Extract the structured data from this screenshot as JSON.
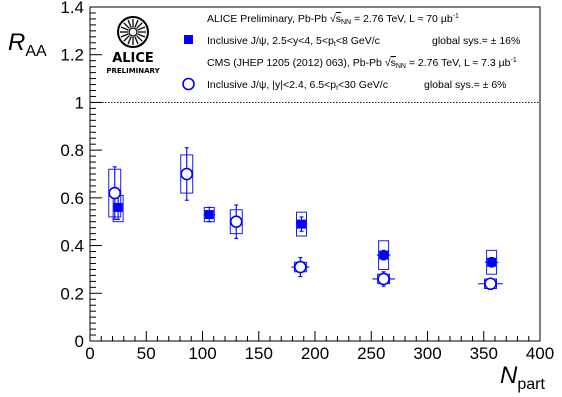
{
  "chart_data": {
    "type": "scatter",
    "xlabel": "N",
    "xlabel_sub": "part",
    "ylabel": "R",
    "ylabel_sub": "AA",
    "xlim": [
      0,
      400
    ],
    "ylim": [
      0,
      1.4
    ],
    "x_ticks": [
      "0",
      "50",
      "100",
      "150",
      "200",
      "250",
      "300",
      "350",
      "400"
    ],
    "y_ticks": [
      "0",
      "0.2",
      "0.4",
      "0.6",
      "0.8",
      "1",
      "1.2",
      "1.4"
    ],
    "reference_line": 1,
    "series": [
      {
        "key": "alice",
        "color": "#0000ff",
        "marker": "filled-square",
        "points": [
          {
            "x": 25,
            "y": 0.56,
            "stat": 0.05,
            "sys_lo": 0.06,
            "sys_hi": 0.05,
            "xerr": 4
          },
          {
            "x": 106,
            "y": 0.53,
            "stat": 0.03,
            "sys_lo": 0.03,
            "sys_hi": 0.03,
            "xerr": 5
          },
          {
            "x": 188,
            "y": 0.49,
            "stat": 0.03,
            "sys_lo": 0.05,
            "sys_hi": 0.05,
            "xerr": 5
          },
          {
            "x": 261,
            "y": 0.36,
            "stat": 0.02,
            "sys_lo": 0.06,
            "sys_hi": 0.06,
            "xerr": 6
          },
          {
            "x": 357,
            "y": 0.33,
            "stat": 0.02,
            "sys_lo": 0.05,
            "sys_hi": 0.05,
            "xerr": 6
          }
        ]
      },
      {
        "key": "cms",
        "color": "#0000ff",
        "marker": "open-circle",
        "points": [
          {
            "x": 22,
            "y": 0.62,
            "stat": 0.11,
            "sys_lo": 0.1,
            "sys_hi": 0.1,
            "xerr": 3
          },
          {
            "x": 86,
            "y": 0.7,
            "stat": 0.11,
            "sys_lo": 0.08,
            "sys_hi": 0.08,
            "xerr": 4
          },
          {
            "x": 130,
            "y": 0.5,
            "stat": 0.07,
            "sys_lo": 0.05,
            "sys_hi": 0.05,
            "xerr": 5
          },
          {
            "x": 187,
            "y": 0.31,
            "stat": 0.04,
            "sys_lo": 0.02,
            "sys_hi": 0.02,
            "xerr": 8
          },
          {
            "x": 261,
            "y": 0.26,
            "stat": 0.03,
            "sys_lo": 0.02,
            "sys_hi": 0.02,
            "xerr": 10
          },
          {
            "x": 356,
            "y": 0.24,
            "stat": 0.02,
            "sys_lo": 0.02,
            "sys_hi": 0.02,
            "xerr": 11
          }
        ]
      }
    ],
    "legend": {
      "alice_header": "ALICE Preliminary, Pb-Pb √s_NN = 2.76 TeV, L ≈ 70 µb⁻¹",
      "alice_entry": "Inclusive J/ψ, 2.5<y<4, 5<p_t<8 GeV/c",
      "alice_sys": "global sys.= ± 16%",
      "cms_header": "CMS (JHEP 1205 (2012) 063), Pb-Pb √s_NN = 2.76 TeV, L ≈ 7.3 µb⁻¹",
      "cms_entry": "Inclusive J/ψ, |y|<2.4, 6.5<p_t<30 GeV/c",
      "cms_sys": "global sys.= ± 6%"
    },
    "logo": {
      "name": "alice-logo",
      "line1": "ALICE",
      "line2": "PRELIMINARY"
    }
  }
}
